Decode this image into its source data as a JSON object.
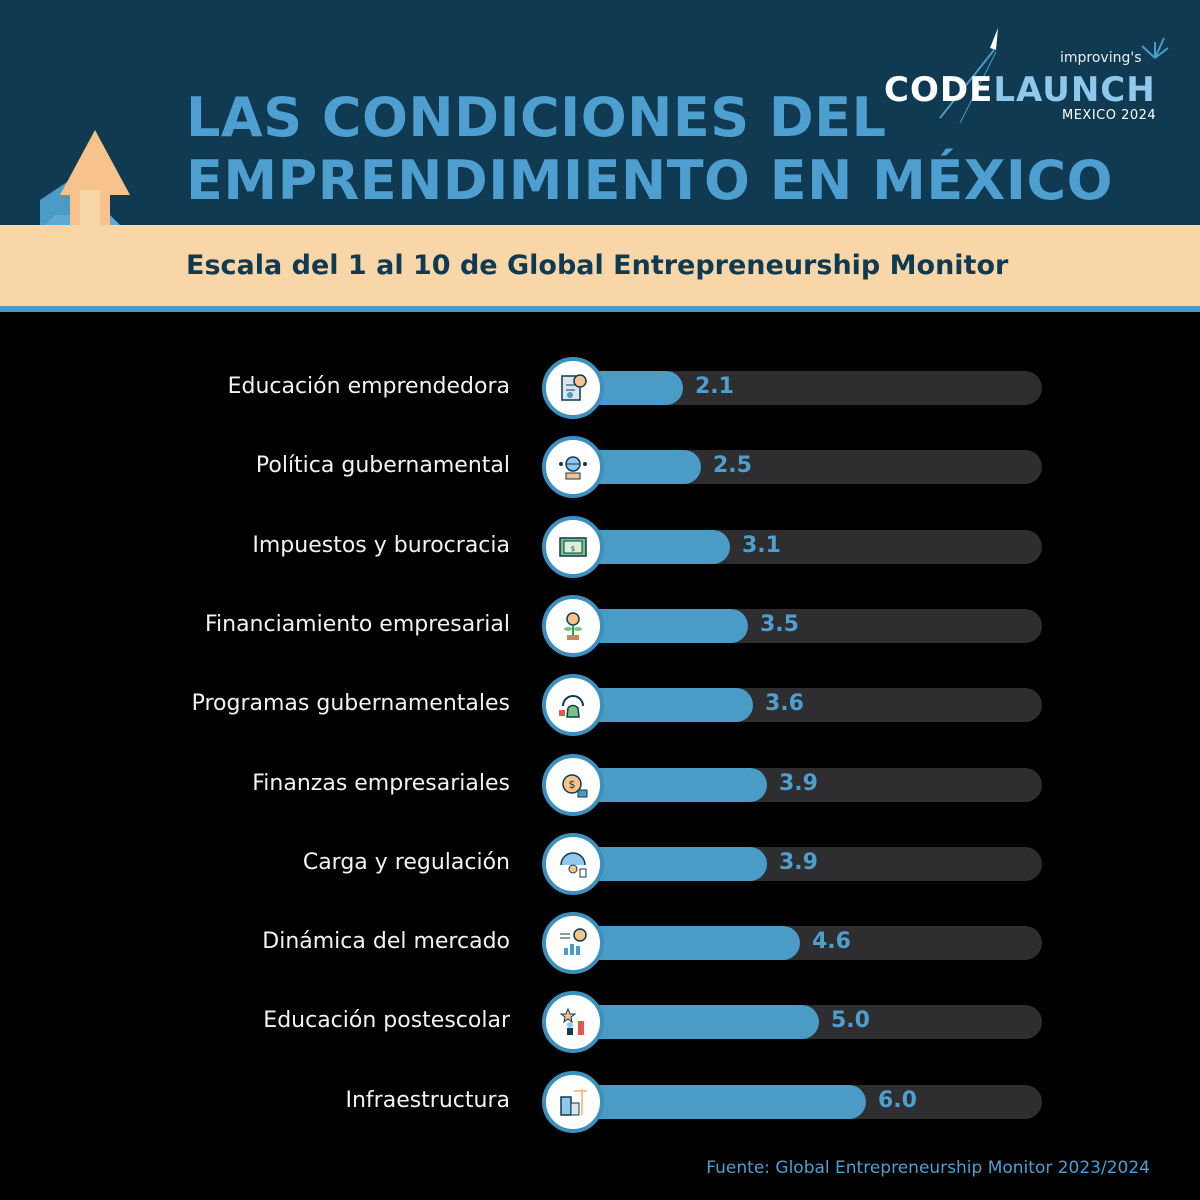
{
  "header": {
    "title_line1": "LAS CONDICIONES DEL",
    "title_line2": "EMPRENDIMIENTO EN MÉXICO",
    "subtitle": "Escala del 1 al 10 de Global Entrepreneurship Monitor"
  },
  "logo": {
    "improving": "improving's",
    "code": "CODE",
    "launch": "LAUNCH",
    "sub": "MEXICO 2024"
  },
  "colors": {
    "header_bg": "#0f3a52",
    "band": "#f9d6a8",
    "accent": "#4a9bc6",
    "track": "#2e2e30",
    "text": "#f2f2f2"
  },
  "chart_data": {
    "type": "bar",
    "orientation": "horizontal",
    "categories": [
      "Educación emprendedora",
      "Política gubernamental",
      "Impuestos y burocracia",
      "Financiamiento empresarial",
      "Programas gubernamentales",
      "Finanzas empresariales",
      "Carga y regulación",
      "Dinámica del mercado",
      "Educación postescolar",
      "Infraestructura"
    ],
    "values": [
      2.1,
      2.5,
      3.1,
      3.5,
      3.6,
      3.9,
      3.9,
      4.6,
      5.0,
      6.0
    ],
    "value_labels": [
      "2.1",
      "2.5",
      "3.1",
      "3.5",
      "3.6",
      "3.9",
      "3.9",
      "4.6",
      "5.0",
      "6.0"
    ],
    "icons": [
      "report-icon",
      "globe-network-icon",
      "money-bill-icon",
      "plant-coin-icon",
      "money-bag-gauge-icon",
      "coin-wallet-icon",
      "gauge-person-icon",
      "chart-dollar-icon",
      "podium-star-icon",
      "buildings-crane-icon"
    ],
    "xlim": [
      0,
      10
    ]
  },
  "source": "Fuente: Global Entrepreneurship Monitor 2023/2024"
}
